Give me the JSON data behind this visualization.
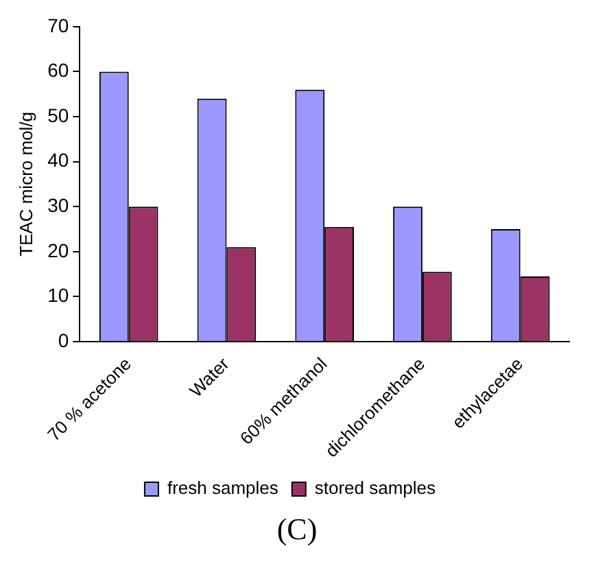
{
  "chart_data": {
    "type": "bar",
    "ylabel": "TEAC micro mol/g",
    "categories": [
      "70 % acetone",
      "Water",
      "60% methanol",
      "dichloromethane",
      "ethylacetae"
    ],
    "series": [
      {
        "name": "fresh samples",
        "color": "#9999ff",
        "values": [
          60,
          54,
          56,
          30,
          25
        ]
      },
      {
        "name": "stored samples",
        "color": "#993366",
        "values": [
          30,
          21,
          25.5,
          15.5,
          14.5
        ]
      }
    ],
    "ylim": [
      0,
      70
    ],
    "yticks": [
      0,
      10,
      20,
      30,
      40,
      50,
      60,
      70
    ],
    "grid": false,
    "legend": "bottom",
    "annotations": [
      "(C)"
    ]
  }
}
